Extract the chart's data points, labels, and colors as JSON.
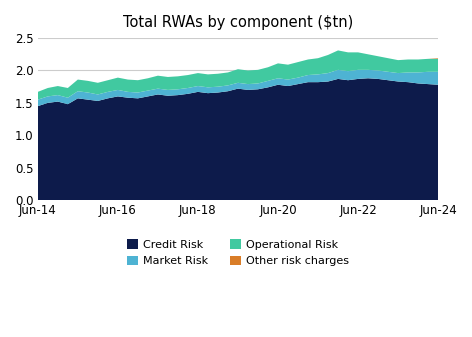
{
  "title": "Total RWAs by component ($tn)",
  "xtick_labels": [
    "Jun-14",
    "Jun-16",
    "Jun-18",
    "Jun-20",
    "Jun-22",
    "Jun-24"
  ],
  "xtick_positions": [
    0,
    8,
    16,
    24,
    32,
    40
  ],
  "n_points": 41,
  "credit_risk": [
    1.45,
    1.5,
    1.52,
    1.48,
    1.57,
    1.55,
    1.53,
    1.57,
    1.6,
    1.58,
    1.57,
    1.6,
    1.63,
    1.61,
    1.62,
    1.64,
    1.67,
    1.65,
    1.66,
    1.68,
    1.72,
    1.7,
    1.71,
    1.74,
    1.78,
    1.76,
    1.79,
    1.82,
    1.82,
    1.83,
    1.87,
    1.85,
    1.87,
    1.88,
    1.87,
    1.85,
    1.83,
    1.82,
    1.8,
    1.79,
    1.78
  ],
  "market_risk": [
    0.1,
    0.1,
    0.1,
    0.1,
    0.11,
    0.11,
    0.1,
    0.1,
    0.1,
    0.09,
    0.09,
    0.09,
    0.09,
    0.09,
    0.09,
    0.09,
    0.09,
    0.09,
    0.09,
    0.09,
    0.09,
    0.09,
    0.09,
    0.1,
    0.1,
    0.1,
    0.1,
    0.11,
    0.12,
    0.13,
    0.14,
    0.14,
    0.14,
    0.13,
    0.13,
    0.13,
    0.13,
    0.15,
    0.17,
    0.19,
    0.2
  ],
  "operational_risk": [
    0.12,
    0.13,
    0.14,
    0.15,
    0.18,
    0.18,
    0.18,
    0.18,
    0.19,
    0.19,
    0.19,
    0.19,
    0.2,
    0.2,
    0.2,
    0.2,
    0.2,
    0.2,
    0.2,
    0.2,
    0.21,
    0.21,
    0.21,
    0.21,
    0.23,
    0.23,
    0.24,
    0.24,
    0.25,
    0.28,
    0.3,
    0.29,
    0.27,
    0.24,
    0.22,
    0.21,
    0.2,
    0.2,
    0.2,
    0.2,
    0.2
  ],
  "other_risk": [
    0.0,
    0.0,
    0.0,
    0.0,
    0.0,
    0.0,
    0.0,
    0.0,
    0.0,
    0.0,
    0.0,
    0.0,
    0.0,
    0.0,
    0.0,
    0.0,
    0.0,
    0.0,
    0.0,
    0.0,
    0.0,
    0.0,
    0.0,
    0.0,
    0.0,
    0.0,
    0.0,
    0.0,
    0.0,
    0.0,
    0.0,
    0.0,
    0.0,
    0.0,
    0.0,
    0.0,
    0.0,
    0.0,
    0.0,
    0.0,
    0.01
  ],
  "colors": {
    "credit_risk": "#0d1b4b",
    "market_risk": "#4eb3d3",
    "operational_risk": "#41c9a0",
    "other_risk": "#d97d28"
  },
  "ylim": [
    0,
    2.5
  ],
  "yticks": [
    0.0,
    0.5,
    1.0,
    1.5,
    2.0,
    2.5
  ],
  "background_color": "#ffffff",
  "grid_color": "#cccccc",
  "legend_row1": [
    "Credit Risk",
    "Market Risk"
  ],
  "legend_row2": [
    "Operational Risk",
    "Other risk charges"
  ]
}
